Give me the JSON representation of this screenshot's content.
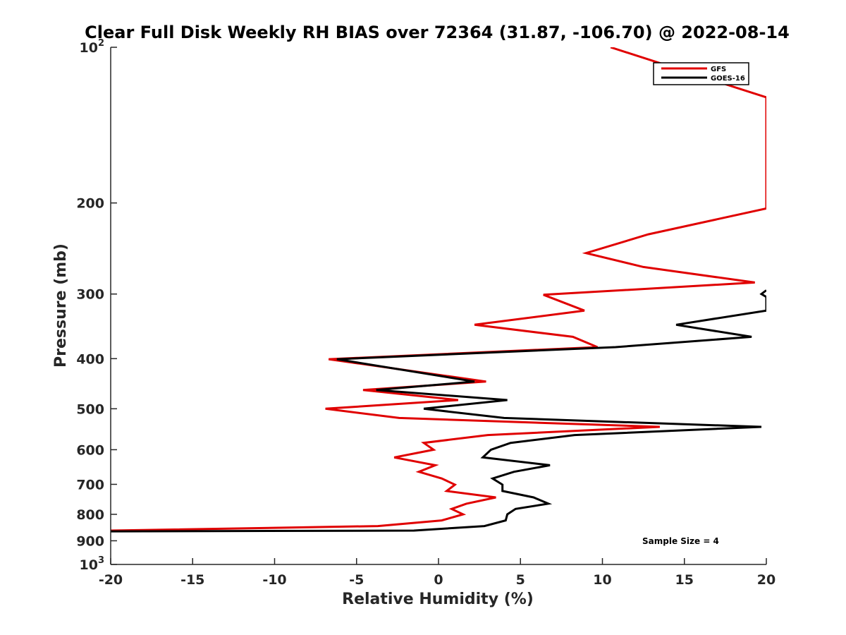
{
  "chart_data": {
    "type": "line",
    "title": "Clear Full Disk Weekly RH BIAS over 72364 (31.87, -106.70) @ 2022-08-14",
    "xlabel": "Relative Humidity (%)",
    "ylabel": "Pressure (mb)",
    "xlim": [
      -20,
      20
    ],
    "ylim": [
      100,
      1000
    ],
    "y_scale": "log",
    "y_reversed": true,
    "grid": false,
    "legend_position": "top-right",
    "x_ticks": [
      "-20",
      "-15",
      "-10",
      "-5",
      "0",
      "5",
      "10",
      "15",
      "20"
    ],
    "y_ticks": [
      {
        "value": 100,
        "base": "10",
        "exp": "2"
      },
      {
        "value": 200,
        "label": "200"
      },
      {
        "value": 300,
        "label": "300"
      },
      {
        "value": 400,
        "label": "400"
      },
      {
        "value": 500,
        "label": "500"
      },
      {
        "value": 600,
        "label": "600"
      },
      {
        "value": 700,
        "label": "700"
      },
      {
        "value": 800,
        "label": "800"
      },
      {
        "value": 900,
        "label": "900"
      },
      {
        "value": 1000,
        "base": "10",
        "exp": "3"
      }
    ],
    "series": [
      {
        "name": "GFS",
        "color": "#e00000",
        "points": [
          [
            10.5,
            100
          ],
          [
            20,
            125
          ],
          [
            20,
            205
          ],
          [
            12.8,
            230
          ],
          [
            9.0,
            250
          ],
          [
            12.5,
            266
          ],
          [
            19.3,
            285
          ],
          [
            6.4,
            301
          ],
          [
            8.9,
            323
          ],
          [
            2.2,
            344
          ],
          [
            8.2,
            363
          ],
          [
            9.7,
            380
          ],
          [
            -6.7,
            401
          ],
          [
            2.9,
            443
          ],
          [
            -4.6,
            460
          ],
          [
            1.2,
            481
          ],
          [
            -6.9,
            500
          ],
          [
            -2.4,
            521
          ],
          [
            13.5,
            542
          ],
          [
            3.0,
            562
          ],
          [
            -0.9,
            582
          ],
          [
            -0.3,
            600
          ],
          [
            -2.7,
            621
          ],
          [
            -0.2,
            643
          ],
          [
            -1.2,
            662
          ],
          [
            0.2,
            682
          ],
          [
            1.0,
            701
          ],
          [
            0.5,
            721
          ],
          [
            3.5,
            742
          ],
          [
            1.7,
            763
          ],
          [
            0.8,
            781
          ],
          [
            1.5,
            800
          ],
          [
            0.2,
            822
          ],
          [
            -3.7,
            843
          ],
          [
            -20,
            860
          ]
        ]
      },
      {
        "name": "GOES-16",
        "color": "#000000",
        "points": [
          [
            20,
            295
          ],
          [
            19.7,
            300
          ],
          [
            20,
            304
          ],
          [
            20,
            323
          ],
          [
            14.5,
            344
          ],
          [
            19.1,
            363
          ],
          [
            10.8,
            380
          ],
          [
            -6.2,
            401
          ],
          [
            2.2,
            443
          ],
          [
            -3.8,
            460
          ],
          [
            4.2,
            481
          ],
          [
            -0.9,
            500
          ],
          [
            4.0,
            521
          ],
          [
            19.7,
            542
          ],
          [
            8.3,
            562
          ],
          [
            4.4,
            582
          ],
          [
            3.2,
            600
          ],
          [
            2.7,
            621
          ],
          [
            6.8,
            643
          ],
          [
            4.6,
            662
          ],
          [
            3.3,
            682
          ],
          [
            3.9,
            701
          ],
          [
            3.9,
            721
          ],
          [
            5.8,
            742
          ],
          [
            6.7,
            763
          ],
          [
            4.7,
            781
          ],
          [
            4.2,
            800
          ],
          [
            4.1,
            822
          ],
          [
            2.8,
            843
          ],
          [
            -1.5,
            860
          ],
          [
            -20,
            863
          ]
        ]
      }
    ],
    "annotation": "Sample Size = 4"
  }
}
